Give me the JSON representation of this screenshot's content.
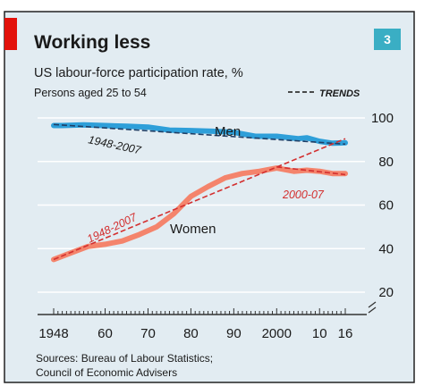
{
  "chart_data": {
    "type": "line",
    "title": "Working less",
    "subtitle": "US labour-force participation rate, %",
    "note": "Persons aged 25 to 54",
    "chart_number": "3",
    "legend": {
      "label": "TRENDS",
      "position": "top-right",
      "color": "#333333"
    },
    "ylim": [
      20,
      100
    ],
    "y_ticks": [
      20,
      40,
      60,
      80,
      100
    ],
    "y_tick_labels": [
      "20",
      "40",
      "60",
      "80",
      "100"
    ],
    "xlim": [
      1948,
      2016
    ],
    "x_ticks": [
      1948,
      1960,
      1970,
      1980,
      1990,
      2000,
      2010,
      2016
    ],
    "x_tick_labels": [
      "1948",
      "60",
      "70",
      "80",
      "90",
      "2000",
      "10",
      "16"
    ],
    "grid": true,
    "series": [
      {
        "name": "Men",
        "color": "#2e9fd9",
        "x": [
          1948,
          1950,
          1955,
          1960,
          1965,
          1970,
          1975,
          1980,
          1985,
          1990,
          1995,
          2000,
          2005,
          2007,
          2010,
          2013,
          2016
        ],
        "values": [
          96.5,
          96.5,
          96.8,
          96.5,
          96.2,
          95.8,
          94.4,
          94.2,
          93.9,
          93.4,
          91.6,
          91.6,
          90.5,
          90.9,
          89.3,
          88.4,
          88.6
        ]
      },
      {
        "name": "Women",
        "color": "#f4846c",
        "x": [
          1948,
          1952,
          1956,
          1960,
          1964,
          1968,
          1972,
          1976,
          1980,
          1984,
          1988,
          1992,
          1996,
          2000,
          2004,
          2007,
          2010,
          2013,
          2016
        ],
        "values": [
          35.0,
          38.0,
          41.0,
          42.0,
          43.5,
          46.5,
          50.0,
          56.0,
          64.0,
          68.5,
          72.5,
          74.5,
          75.5,
          77.0,
          75.5,
          76.0,
          75.5,
          74.5,
          74.5
        ]
      }
    ],
    "trend_lines": [
      {
        "label": "1948-2007",
        "color": "#1f3f66",
        "x": [
          1948,
          2016
        ],
        "values": [
          97.0,
          88.0
        ]
      },
      {
        "label": "1948-2007",
        "color": "#d32f2f",
        "x": [
          1948,
          2016
        ],
        "values": [
          35.0,
          90.5
        ]
      },
      {
        "label": "2000-07",
        "color": "#d32f2f",
        "x": [
          2000,
          2016
        ],
        "values": [
          77.5,
          74.0
        ]
      }
    ],
    "annotations": [
      "Men",
      "Women",
      "1948-2007",
      "1948-2007",
      "2000-07"
    ],
    "source": [
      "Sources: Bureau of Labour Statistics;",
      "Council of Economic Advisers"
    ],
    "colors": {
      "accent": "#e3120b",
      "badge": "#3aaec4",
      "panel": "#e2ecf2"
    }
  }
}
